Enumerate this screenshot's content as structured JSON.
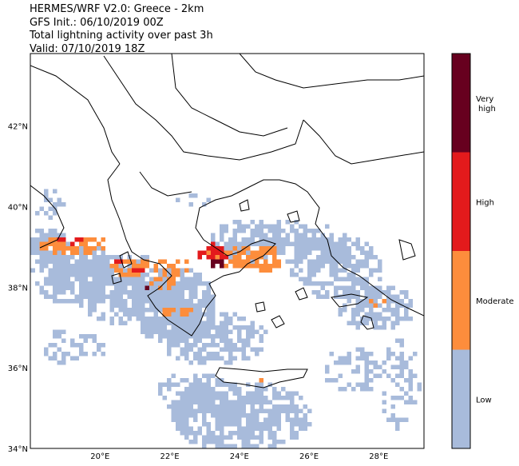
{
  "title_lines": [
    "HERMES/WRF V2.0: Greece - 2km",
    "GFS Init.: 06/10/2019 00Z",
    "Total lightning activity over past 3h",
    "Valid: 07/10/2019 18Z"
  ],
  "map": {
    "lon_range": [
      18.0,
      29.3
    ],
    "lat_range": [
      34.0,
      43.8
    ],
    "lon_ticks": [
      "20°E",
      "22°E",
      "24°E",
      "26°E",
      "28°E"
    ],
    "lat_ticks": [
      "42°N",
      "40°N",
      "38°N",
      "36°N",
      "34°N"
    ]
  },
  "legend": {
    "categories": [
      {
        "label": "Very\nhigh",
        "color": "#67001f"
      },
      {
        "label": "High",
        "color": "#e31a1c"
      },
      {
        "label": "Moderate",
        "color": "#fd8d3c"
      },
      {
        "label": "Low",
        "color": "#a8bbdb"
      }
    ]
  },
  "colors": {
    "low": "#a8bbdb",
    "moderate": "#fd8d3c",
    "high": "#e31a1c",
    "very_high": "#67001f",
    "coast": "#000000"
  }
}
